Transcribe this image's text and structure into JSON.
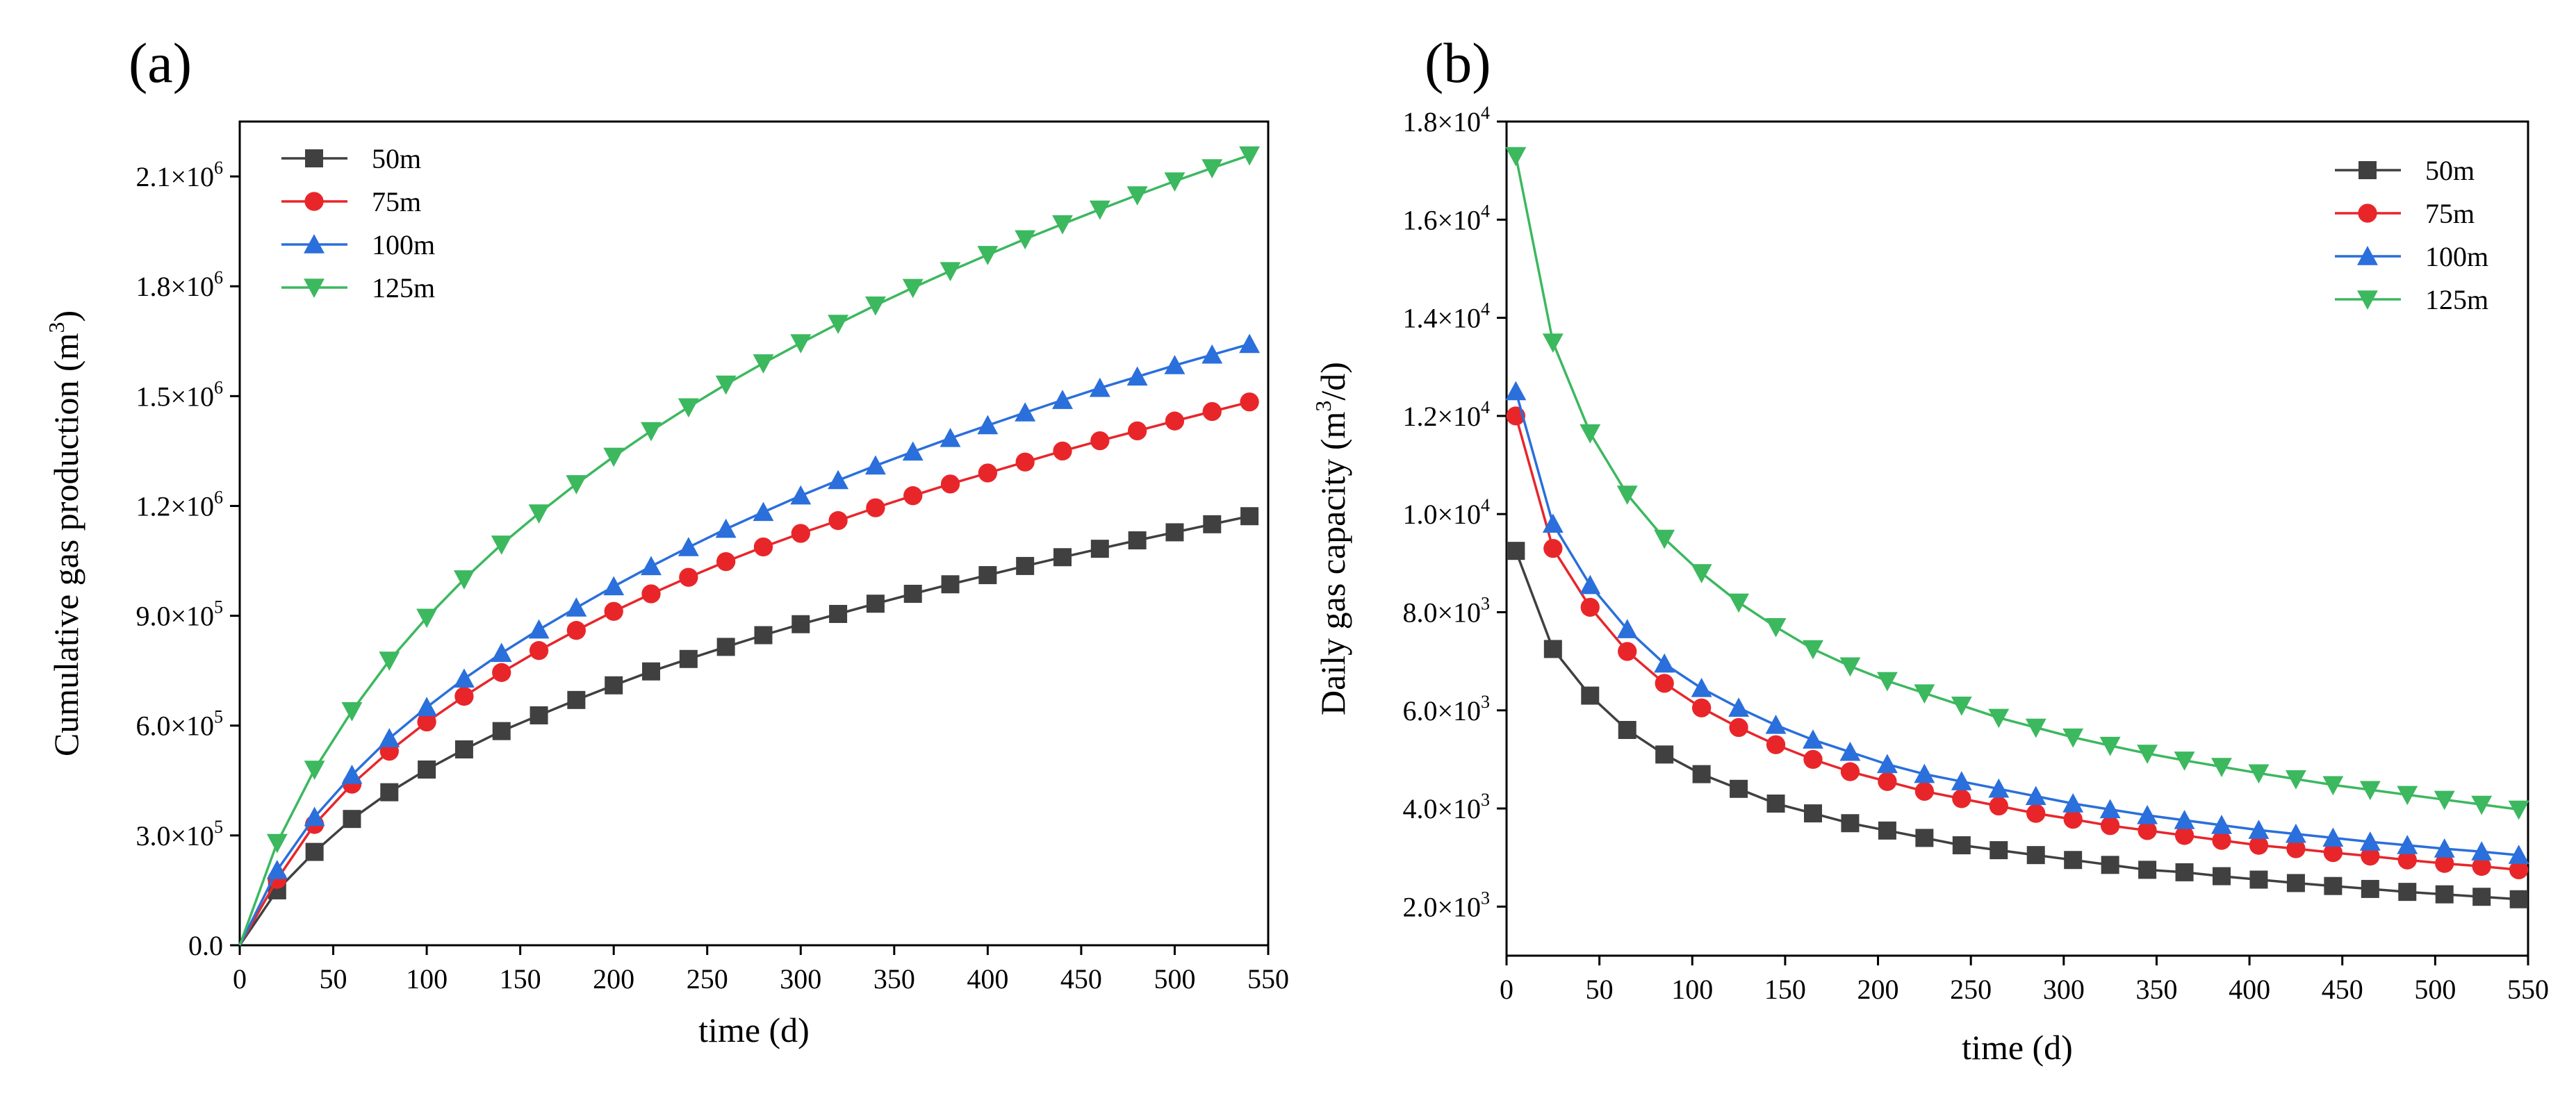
{
  "figure": {
    "panels": [
      {
        "id": "a",
        "panel_label": "(a)",
        "xlabel": "time (d)",
        "ylabel": "Cumulative gas production (m",
        "ylabel_sup": "3",
        "ylabel_end": ")",
        "legend_position": "top-left"
      },
      {
        "id": "b",
        "panel_label": "(b)",
        "xlabel": "time (d)",
        "ylabel": "Daily gas capacity (m",
        "ylabel_sup": "3",
        "ylabel_end": "/d)",
        "legend_position": "top-right"
      }
    ]
  },
  "colors": {
    "50m": "#404040",
    "75m": "#e8262a",
    "100m": "#2a6fdb",
    "125m": "#3cb85f"
  },
  "chart_data": [
    {
      "type": "line",
      "panel": "a",
      "xlim": [
        0,
        550
      ],
      "ylim": [
        0,
        2250000
      ],
      "grid": false,
      "xticks": [
        0,
        50,
        100,
        150,
        200,
        250,
        300,
        350,
        400,
        450,
        500,
        550
      ],
      "yticks": [
        {
          "value": 0,
          "mant": "0.0",
          "exp": ""
        },
        {
          "value": 300000,
          "mant": "3.0×10",
          "exp": "5"
        },
        {
          "value": 600000,
          "mant": "6.0×10",
          "exp": "5"
        },
        {
          "value": 900000,
          "mant": "9.0×10",
          "exp": "5"
        },
        {
          "value": 1200000,
          "mant": "1.2×10",
          "exp": "6"
        },
        {
          "value": 1500000,
          "mant": "1.5×10",
          "exp": "6"
        },
        {
          "value": 1800000,
          "mant": "1.8×10",
          "exp": "6"
        },
        {
          "value": 2100000,
          "mant": "2.1×10",
          "exp": "6"
        }
      ],
      "x": [
        0,
        20,
        40,
        60,
        80,
        100,
        120,
        140,
        160,
        180,
        200,
        220,
        240,
        260,
        280,
        300,
        320,
        340,
        360,
        380,
        400,
        420,
        440,
        460,
        480,
        500,
        520,
        540
      ],
      "series": [
        {
          "name": "50m",
          "marker": "square",
          "values": [
            0,
            150000,
            255000,
            345000,
            418000,
            480000,
            535000,
            585000,
            628000,
            670000,
            710000,
            748000,
            782000,
            815000,
            847000,
            877000,
            905000,
            933000,
            960000,
            986000,
            1011000,
            1036000,
            1060000,
            1083000,
            1106000,
            1128000,
            1150000,
            1172000
          ]
        },
        {
          "name": "75m",
          "marker": "circle",
          "values": [
            0,
            180000,
            330000,
            440000,
            530000,
            610000,
            680000,
            745000,
            805000,
            860000,
            912000,
            960000,
            1005000,
            1048000,
            1088000,
            1125000,
            1160000,
            1195000,
            1228000,
            1260000,
            1290000,
            1320000,
            1350000,
            1378000,
            1405000,
            1432000,
            1458000,
            1484000
          ]
        },
        {
          "name": "100m",
          "marker": "triangle-up",
          "values": [
            0,
            205000,
            350000,
            465000,
            565000,
            650000,
            728000,
            798000,
            862000,
            922000,
            980000,
            1035000,
            1087000,
            1137000,
            1183000,
            1228000,
            1270000,
            1310000,
            1348000,
            1385000,
            1420000,
            1455000,
            1489000,
            1522000,
            1553000,
            1584000,
            1613000,
            1642000
          ]
        },
        {
          "name": "125m",
          "marker": "triangle-down",
          "values": [
            0,
            280000,
            480000,
            640000,
            778000,
            895000,
            1000000,
            1095000,
            1180000,
            1260000,
            1335000,
            1405000,
            1470000,
            1532000,
            1590000,
            1645000,
            1698000,
            1748000,
            1796000,
            1842000,
            1886000,
            1929000,
            1970000,
            2010000,
            2049000,
            2087000,
            2123000,
            2158000
          ]
        }
      ]
    },
    {
      "type": "line",
      "panel": "b",
      "xlim": [
        0,
        550
      ],
      "ylim": [
        1000,
        18000
      ],
      "grid": false,
      "xticks": [
        0,
        50,
        100,
        150,
        200,
        250,
        300,
        350,
        400,
        450,
        500,
        550
      ],
      "yticks": [
        {
          "value": 2000,
          "mant": "2.0×10",
          "exp": "3"
        },
        {
          "value": 4000,
          "mant": "4.0×10",
          "exp": "3"
        },
        {
          "value": 6000,
          "mant": "6.0×10",
          "exp": "3"
        },
        {
          "value": 8000,
          "mant": "8.0×10",
          "exp": "3"
        },
        {
          "value": 10000,
          "mant": "1.0×10",
          "exp": "4"
        },
        {
          "value": 12000,
          "mant": "1.2×10",
          "exp": "4"
        },
        {
          "value": 14000,
          "mant": "1.4×10",
          "exp": "4"
        },
        {
          "value": 16000,
          "mant": "1.6×10",
          "exp": "4"
        },
        {
          "value": 18000,
          "mant": "1.8×10",
          "exp": "4"
        }
      ],
      "x": [
        5,
        25,
        45,
        65,
        85,
        105,
        125,
        145,
        165,
        185,
        205,
        225,
        245,
        265,
        285,
        305,
        325,
        345,
        365,
        385,
        405,
        425,
        445,
        465,
        485,
        505,
        525,
        545
      ],
      "series": [
        {
          "name": "50m",
          "marker": "square",
          "values": [
            9250,
            7250,
            6300,
            5600,
            5100,
            4700,
            4400,
            4100,
            3900,
            3700,
            3550,
            3400,
            3250,
            3150,
            3050,
            2950,
            2850,
            2750,
            2700,
            2620,
            2550,
            2480,
            2420,
            2360,
            2300,
            2250,
            2200,
            2150
          ]
        },
        {
          "name": "75m",
          "marker": "circle",
          "values": [
            12000,
            9300,
            8100,
            7200,
            6550,
            6050,
            5650,
            5300,
            5000,
            4750,
            4550,
            4350,
            4200,
            4050,
            3900,
            3780,
            3650,
            3550,
            3450,
            3350,
            3250,
            3180,
            3100,
            3030,
            2950,
            2880,
            2820,
            2750
          ]
        },
        {
          "name": "100m",
          "marker": "triangle-up",
          "values": [
            12500,
            9800,
            8550,
            7650,
            6950,
            6450,
            6050,
            5700,
            5400,
            5150,
            4900,
            4700,
            4550,
            4400,
            4250,
            4100,
            3980,
            3860,
            3760,
            3660,
            3560,
            3480,
            3400,
            3320,
            3250,
            3180,
            3120,
            3050
          ]
        },
        {
          "name": "125m",
          "marker": "triangle-down",
          "values": [
            17300,
            13500,
            11650,
            10400,
            9500,
            8800,
            8200,
            7700,
            7250,
            6900,
            6600,
            6350,
            6100,
            5850,
            5650,
            5450,
            5280,
            5120,
            4980,
            4850,
            4720,
            4600,
            4480,
            4380,
            4280,
            4180,
            4080,
            3980
          ]
        }
      ]
    }
  ]
}
